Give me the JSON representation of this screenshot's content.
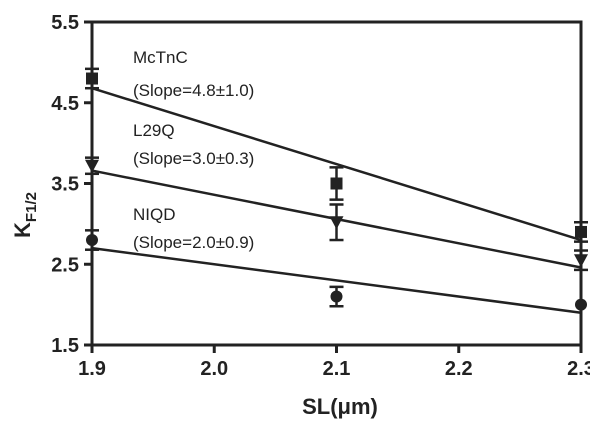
{
  "chart_data": {
    "type": "scatter",
    "title": "",
    "xlabel": "SL(μm)",
    "ylabel": "K",
    "ylabel_subscript": "F1/2",
    "xlim": [
      1.9,
      2.3
    ],
    "ylim": [
      1.5,
      5.5
    ],
    "xticks": [
      "1.9",
      "2.0",
      "2.1",
      "2.2",
      "2.3"
    ],
    "yticks": [
      "1.5",
      "2.5",
      "3.5",
      "4.5",
      "5.5"
    ],
    "grid": false,
    "legend": "none",
    "series": [
      {
        "name": "McTnC",
        "annotation": "(Slope=4.8±1.0)",
        "marker": "square",
        "points": [
          {
            "x": 1.9,
            "y": 4.8,
            "err": 0.12
          },
          {
            "x": 2.1,
            "y": 3.5,
            "err": 0.2
          },
          {
            "x": 2.3,
            "y": 2.9,
            "err": 0.12
          }
        ],
        "fit": [
          [
            1.9,
            4.68
          ],
          [
            2.3,
            2.8
          ]
        ]
      },
      {
        "name": "L29Q",
        "annotation": "(Slope=3.0±0.3)",
        "marker": "triangle-down",
        "points": [
          {
            "x": 1.9,
            "y": 3.72,
            "err": 0.1
          },
          {
            "x": 2.1,
            "y": 3.02,
            "err": 0.22
          },
          {
            "x": 2.3,
            "y": 2.55,
            "err": 0.12
          }
        ],
        "fit": [
          [
            1.9,
            3.66
          ],
          [
            2.3,
            2.46
          ]
        ]
      },
      {
        "name": "NIQD",
        "annotation": "(Slope=2.0±0.9)",
        "marker": "circle",
        "points": [
          {
            "x": 1.9,
            "y": 2.8,
            "err": 0.12
          },
          {
            "x": 2.1,
            "y": 2.1,
            "err": 0.12
          },
          {
            "x": 2.3,
            "y": 2.0,
            "err": 0.0
          }
        ],
        "fit": [
          [
            1.9,
            2.7
          ],
          [
            2.3,
            1.9
          ]
        ]
      }
    ]
  }
}
